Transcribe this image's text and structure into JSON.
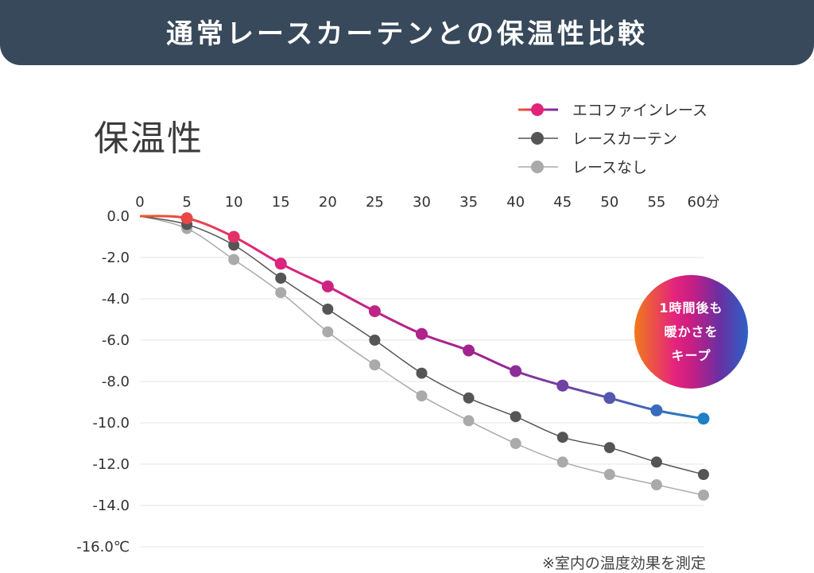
{
  "banner": {
    "title": "通常レースカーテンとの保温性比較"
  },
  "colors": {
    "banner_bg": "#37495a",
    "eco_start": "#ee5a24",
    "eco_mid": "#e0247a",
    "eco_mid2": "#9b2390",
    "eco_end": "#1e7fc8",
    "lace": "#555555",
    "none": "#aaaaaa",
    "grid": "#e6e6e6"
  },
  "badge": {
    "lines": [
      "1時間後も",
      "暖かさを",
      "キープ"
    ]
  },
  "footnote": "※室内の温度効果を測定",
  "chart_data": {
    "type": "line",
    "title": "保温性",
    "x": [
      0,
      5,
      10,
      15,
      20,
      25,
      30,
      35,
      40,
      45,
      50,
      55,
      60
    ],
    "x_tick_labels": [
      "0",
      "5",
      "10",
      "15",
      "20",
      "25",
      "30",
      "35",
      "40",
      "45",
      "50",
      "55",
      "60分"
    ],
    "y_tick_labels": [
      "0.0",
      "-2.0",
      "-4.0",
      "-6.0",
      "-8.0",
      "-10.0",
      "-12.0",
      "-14.0",
      "-16.0℃"
    ],
    "y_ticks": [
      0,
      -2,
      -4,
      -6,
      -8,
      -10,
      -12,
      -14,
      -16
    ],
    "xlim": [
      0,
      60
    ],
    "ylim": [
      -16,
      0
    ],
    "xlabel": "",
    "ylabel": "",
    "series": [
      {
        "name": "レースなし",
        "key": "none",
        "markers_from": 1,
        "values": [
          0,
          -0.6,
          -2.1,
          -3.7,
          -5.6,
          -7.2,
          -8.7,
          -9.9,
          -11.0,
          -11.9,
          -12.5,
          -13.0,
          -13.5
        ]
      },
      {
        "name": "レースカーテン",
        "key": "lace",
        "markers_from": 1,
        "values": [
          0,
          -0.4,
          -1.4,
          -3.0,
          -4.5,
          -6.0,
          -7.6,
          -8.8,
          -9.7,
          -10.7,
          -11.2,
          -11.9,
          -12.5
        ]
      },
      {
        "name": "エコファインレース",
        "key": "eco",
        "markers_from": 1,
        "values": [
          0,
          -0.1,
          -1.0,
          -2.3,
          -3.4,
          -4.6,
          -5.7,
          -6.5,
          -7.5,
          -8.2,
          -8.8,
          -9.4,
          -9.8
        ]
      }
    ],
    "legend": {
      "position": "top-right",
      "order": [
        "エコファインレース",
        "レースカーテン",
        "レースなし"
      ]
    }
  }
}
